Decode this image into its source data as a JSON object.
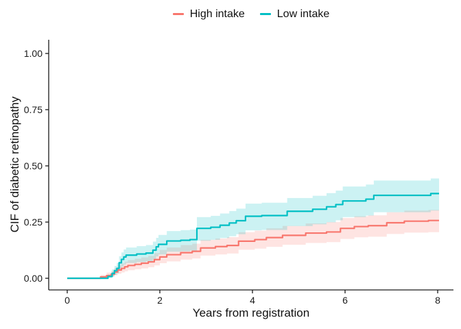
{
  "figure": {
    "background": "#FFFFFF",
    "accent_red": "#F8766D",
    "accent_teal": "#00BFC4"
  },
  "legend": {
    "position": "top-center",
    "items": [
      {
        "label": "High intake",
        "color": "#F8766D"
      },
      {
        "label": "Low intake",
        "color": "#00BFC4"
      }
    ]
  },
  "chart_data": {
    "type": "line",
    "subtype": "step-function-cumulative-incidence-with-confidence-bands",
    "title": "",
    "xlabel": "Years from registration",
    "ylabel": "CIF of diabetic retinopathy",
    "xlim": [
      0,
      8
    ],
    "ylim": [
      0,
      1
    ],
    "xticks": [
      {
        "value": 0,
        "label": "0"
      },
      {
        "value": 2,
        "label": "2"
      },
      {
        "value": 4,
        "label": "4"
      },
      {
        "value": 6,
        "label": "6"
      },
      {
        "value": 8,
        "label": "8"
      }
    ],
    "yticks": [
      {
        "value": 0,
        "label": "0.00"
      },
      {
        "value": 0.25,
        "label": "0.25"
      },
      {
        "value": 0.5,
        "label": "0.50"
      },
      {
        "value": 0.75,
        "label": "0.75"
      },
      {
        "value": 1,
        "label": "1.00"
      }
    ],
    "grid": false,
    "legend_position": "top",
    "band_opacity": 0.2,
    "series": [
      {
        "name": "High intake",
        "color": "#F8766D",
        "points_format": [
          "years",
          "cif",
          "ci_lower",
          "ci_upper"
        ],
        "points": [
          [
            0.0,
            0.0,
            0.0,
            0.0
          ],
          [
            0.72,
            0.006,
            0.001,
            0.015
          ],
          [
            0.85,
            0.012,
            0.004,
            0.025
          ],
          [
            0.95,
            0.018,
            0.008,
            0.033
          ],
          [
            1.02,
            0.028,
            0.014,
            0.046
          ],
          [
            1.09,
            0.037,
            0.02,
            0.057
          ],
          [
            1.17,
            0.044,
            0.026,
            0.066
          ],
          [
            1.24,
            0.051,
            0.031,
            0.074
          ],
          [
            1.31,
            0.057,
            0.036,
            0.081
          ],
          [
            1.46,
            0.062,
            0.04,
            0.087
          ],
          [
            1.6,
            0.067,
            0.044,
            0.093
          ],
          [
            1.75,
            0.073,
            0.049,
            0.1
          ],
          [
            1.88,
            0.083,
            0.057,
            0.112
          ],
          [
            2.0,
            0.095,
            0.067,
            0.126
          ],
          [
            2.15,
            0.105,
            0.075,
            0.137
          ],
          [
            2.45,
            0.114,
            0.083,
            0.148
          ],
          [
            2.7,
            0.12,
            0.088,
            0.154
          ],
          [
            2.88,
            0.135,
            0.101,
            0.171
          ],
          [
            3.2,
            0.141,
            0.106,
            0.177
          ],
          [
            3.45,
            0.146,
            0.11,
            0.183
          ],
          [
            3.7,
            0.165,
            0.127,
            0.205
          ],
          [
            4.05,
            0.172,
            0.132,
            0.212
          ],
          [
            4.3,
            0.181,
            0.14,
            0.222
          ],
          [
            4.65,
            0.191,
            0.149,
            0.233
          ],
          [
            5.15,
            0.201,
            0.157,
            0.244
          ],
          [
            5.6,
            0.206,
            0.161,
            0.25
          ],
          [
            5.9,
            0.222,
            0.175,
            0.268
          ],
          [
            6.2,
            0.23,
            0.182,
            0.276
          ],
          [
            6.5,
            0.234,
            0.185,
            0.28
          ],
          [
            6.9,
            0.247,
            0.197,
            0.294
          ],
          [
            7.28,
            0.254,
            0.203,
            0.301
          ],
          [
            7.8,
            0.257,
            0.205,
            0.304
          ],
          [
            8.03,
            0.257,
            0.205,
            0.304
          ]
        ]
      },
      {
        "name": "Low intake",
        "color": "#00BFC4",
        "points_format": [
          "years",
          "cif",
          "ci_lower",
          "ci_upper"
        ],
        "points": [
          [
            0.0,
            0.0,
            0.0,
            0.0
          ],
          [
            0.88,
            0.008,
            0.002,
            0.018
          ],
          [
            0.97,
            0.022,
            0.008,
            0.04
          ],
          [
            1.02,
            0.034,
            0.015,
            0.055
          ],
          [
            1.07,
            0.044,
            0.022,
            0.068
          ],
          [
            1.12,
            0.069,
            0.04,
            0.098
          ],
          [
            1.17,
            0.084,
            0.052,
            0.115
          ],
          [
            1.22,
            0.095,
            0.061,
            0.128
          ],
          [
            1.27,
            0.103,
            0.068,
            0.137
          ],
          [
            1.5,
            0.108,
            0.072,
            0.143
          ],
          [
            1.7,
            0.112,
            0.075,
            0.148
          ],
          [
            1.85,
            0.125,
            0.085,
            0.163
          ],
          [
            1.92,
            0.14,
            0.097,
            0.18
          ],
          [
            1.97,
            0.151,
            0.106,
            0.193
          ],
          [
            2.15,
            0.166,
            0.118,
            0.21
          ],
          [
            2.45,
            0.169,
            0.12,
            0.214
          ],
          [
            2.65,
            0.172,
            0.123,
            0.217
          ],
          [
            2.8,
            0.222,
            0.167,
            0.272
          ],
          [
            3.1,
            0.227,
            0.171,
            0.278
          ],
          [
            3.3,
            0.236,
            0.179,
            0.288
          ],
          [
            3.5,
            0.246,
            0.187,
            0.299
          ],
          [
            3.65,
            0.256,
            0.196,
            0.31
          ],
          [
            3.85,
            0.276,
            0.213,
            0.332
          ],
          [
            4.2,
            0.279,
            0.215,
            0.336
          ],
          [
            4.75,
            0.298,
            0.232,
            0.357
          ],
          [
            5.3,
            0.307,
            0.24,
            0.367
          ],
          [
            5.6,
            0.318,
            0.249,
            0.379
          ],
          [
            5.8,
            0.328,
            0.258,
            0.39
          ],
          [
            5.95,
            0.344,
            0.272,
            0.408
          ],
          [
            6.45,
            0.352,
            0.279,
            0.417
          ],
          [
            6.62,
            0.369,
            0.294,
            0.435
          ],
          [
            7.85,
            0.377,
            0.301,
            0.444
          ],
          [
            8.03,
            0.377,
            0.301,
            0.444
          ]
        ]
      }
    ]
  }
}
